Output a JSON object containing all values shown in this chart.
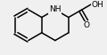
{
  "bg_color": "#f0f0f0",
  "bond_color": "#000000",
  "lw": 1.1,
  "font_size": 6.5,
  "figsize": [
    1.2,
    0.62
  ],
  "dpi": 100,
  "xlim": [
    0,
    120
  ],
  "ylim": [
    0,
    62
  ]
}
